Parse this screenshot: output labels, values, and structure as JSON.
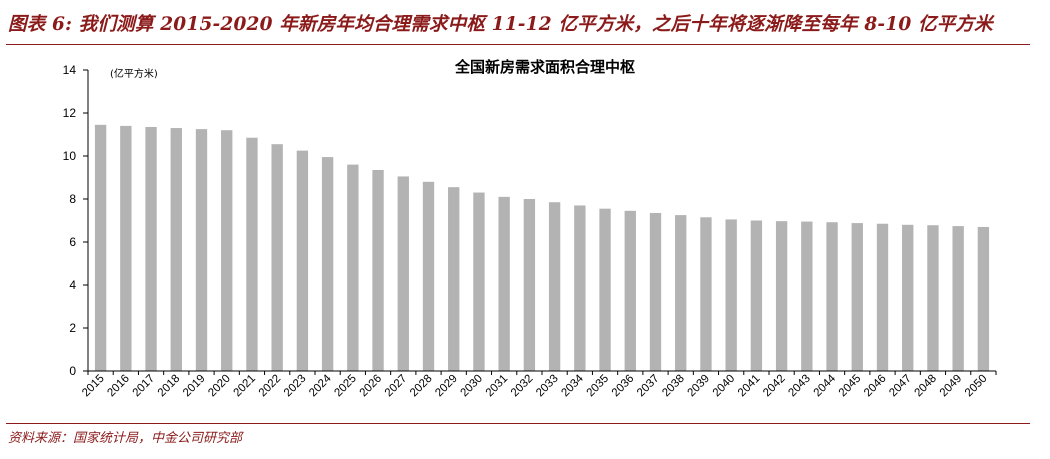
{
  "figure": {
    "title": "图表 6: 我们测算 2015-2020 年新房年均合理需求中枢 11-12 亿平方米，之后十年将逐渐降至每年 8-10 亿平方米",
    "source": "资料来源：国家统计局，中金公司研究部"
  },
  "chart_data": {
    "type": "bar",
    "title": "全国新房需求面积合理中枢",
    "unit_label": "(亿平方米)",
    "ylabel": "亿平方米",
    "ylim": [
      0,
      14
    ],
    "yticks": [
      "0",
      "2",
      "4",
      "6",
      "8",
      "10",
      "12",
      "14"
    ],
    "grid": false,
    "legend": "none",
    "bar_color": "#b3b3b3",
    "categories": [
      "2015",
      "2016",
      "2017",
      "2018",
      "2019",
      "2020",
      "2021",
      "2022",
      "2023",
      "2024",
      "2025",
      "2026",
      "2027",
      "2028",
      "2029",
      "2030",
      "2031",
      "2032",
      "2033",
      "2034",
      "2035",
      "2036",
      "2037",
      "2038",
      "2039",
      "2040",
      "2041",
      "2042",
      "2043",
      "2044",
      "2045",
      "2046",
      "2047",
      "2048",
      "2049",
      "2050"
    ],
    "values": [
      11.45,
      11.4,
      11.35,
      11.3,
      11.25,
      11.2,
      10.85,
      10.55,
      10.25,
      9.95,
      9.6,
      9.35,
      9.05,
      8.8,
      8.55,
      8.3,
      8.1,
      8.0,
      7.85,
      7.7,
      7.55,
      7.45,
      7.35,
      7.25,
      7.15,
      7.05,
      7.0,
      6.97,
      6.95,
      6.92,
      6.88,
      6.85,
      6.8,
      6.78,
      6.74,
      6.7
    ]
  }
}
